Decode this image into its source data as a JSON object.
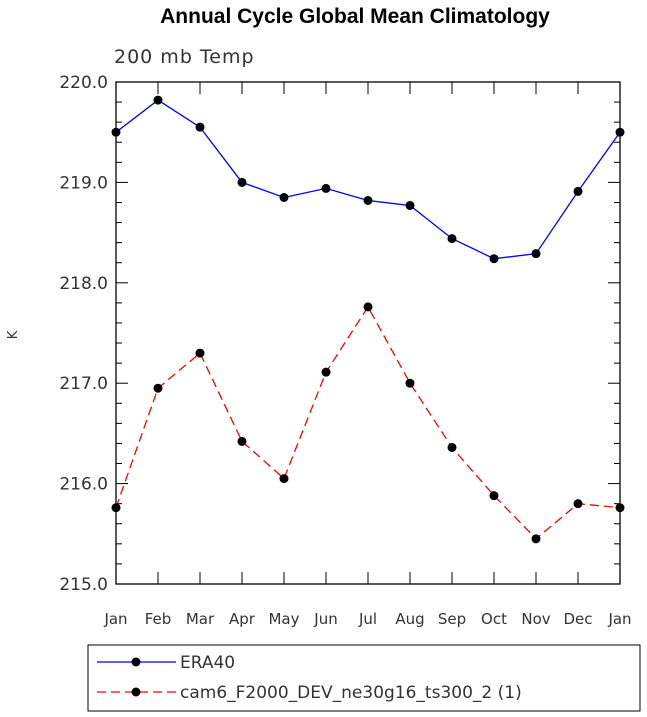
{
  "chart_data": {
    "type": "line",
    "title": "Annual Cycle Global Mean Climatology",
    "subtitle": "200 mb Temp",
    "xlabel": "",
    "ylabel": "K",
    "categories": [
      "Jan",
      "Feb",
      "Mar",
      "Apr",
      "May",
      "Jun",
      "Jul",
      "Aug",
      "Sep",
      "Oct",
      "Nov",
      "Dec",
      "Jan"
    ],
    "yticks": [
      "215.0",
      "216.0",
      "217.0",
      "218.0",
      "219.0",
      "220.0"
    ],
    "ylim": [
      215.0,
      220.0
    ],
    "grid": false,
    "legend_position": "bottom",
    "series": [
      {
        "name": "ERA40",
        "color": "#0000ff",
        "line_style": "solid",
        "marker": "circle",
        "values": [
          219.5,
          219.82,
          219.55,
          219.0,
          218.85,
          218.94,
          218.82,
          218.77,
          218.44,
          218.24,
          218.29,
          218.91,
          219.5
        ]
      },
      {
        "name": "cam6_F2000_DEV_ne30g16_ts300_2 (1)",
        "color": "#ff0000",
        "line_style": "dashed",
        "marker": "circle",
        "values": [
          215.76,
          216.95,
          217.3,
          216.42,
          216.05,
          217.11,
          217.76,
          217.0,
          216.36,
          215.88,
          215.45,
          215.8,
          215.76
        ]
      }
    ]
  }
}
